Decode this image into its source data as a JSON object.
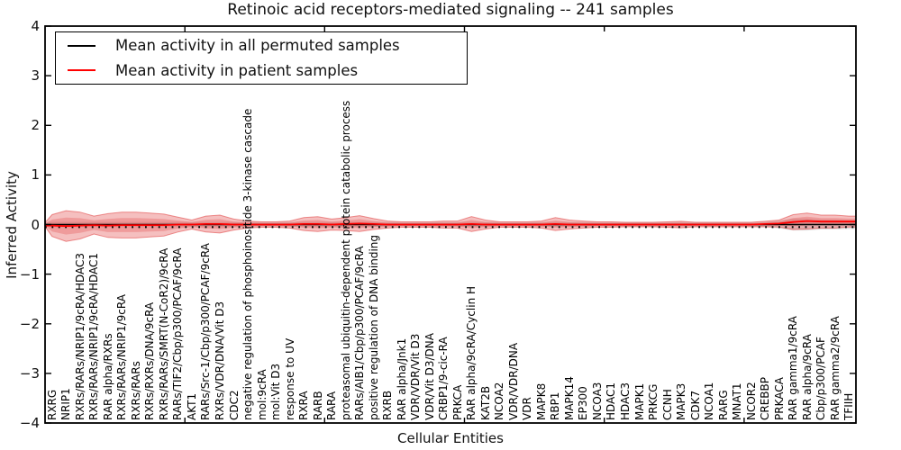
{
  "figure": {
    "title": "Retinoic acid receptors-mediated signaling -- 241 samples",
    "xlabel": "Cellular Entities",
    "ylabel": "Inferred Activity"
  },
  "axes": {
    "yticks": [
      "4",
      "3",
      "2",
      "1",
      "0",
      "−1",
      "−2",
      "−3",
      "−4"
    ]
  },
  "legend": {
    "items": [
      {
        "label": "Mean activity in all permuted samples",
        "color": "#000000"
      },
      {
        "label": "Mean activity in patient samples",
        "color": "#ff0000"
      }
    ]
  },
  "chart_data": {
    "type": "line",
    "title": "Retinoic acid receptors-mediated signaling -- 241 samples",
    "xlabel": "Cellular Entities",
    "ylabel": "Inferred Activity",
    "ylim": [
      -4,
      4
    ],
    "grid": false,
    "legend_position": "upper left",
    "colors": {
      "permuted_line": "#000000",
      "patient_line": "#ff0000",
      "patient_band": "#e03c3c",
      "permuted_band": "#9a9a9a"
    },
    "categories": [
      "RXRG",
      "NRIP1",
      "RXRs/RARs/NRIP1/9cRA/HDAC3",
      "RXRs/RARs/NRIP1/9cRA/HDAC1",
      "RAR alpha/RXRs",
      "RXRs/RARs/NRIP1/9cRA",
      "RXRs/RARs",
      "RXRs/RXRs/DNA/9cRA",
      "RXRs/RARs/SMRT(N-CoR2)/9cRA",
      "RARs/TIF2/Cbp/p300/PCAF/9cRA",
      "AKT1",
      "RARs/Src-1/Cbp/p300/PCAF/9cRA",
      "RXRs/VDR/DNA/Vit D3",
      "CDC2",
      "negative regulation of phosphoinositide 3-kinase cascade",
      "mol:9cRA",
      "mol:Vit D3",
      "response to UV",
      "RXRA",
      "RARB",
      "RARA",
      "proteasomal ubiquitin-dependent protein catabolic process",
      "RARs/AIB1/Cbp/p300/PCAF/9cRA",
      "positive regulation of DNA binding",
      "RXRB",
      "RAR alpha/Jnk1",
      "VDR/VDR/Vit D3",
      "VDR/Vit D3/DNA",
      "CRBP1/9-cic-RA",
      "PRKCA",
      "RAR alpha/9cRA/Cyclin H",
      "KAT2B",
      "NCOA2",
      "VDR/VDR/DNA",
      "VDR",
      "MAPK8",
      "RBP1",
      "MAPK14",
      "EP300",
      "NCOA3",
      "HDAC1",
      "HDAC3",
      "MAPK1",
      "PRKCG",
      "CCNH",
      "MAPK3",
      "CDK7",
      "NCOA1",
      "RARG",
      "MNAT1",
      "NCOR2",
      "CREBBP",
      "PRKACA",
      "RAR gamma1/9cRA",
      "RAR alpha/9cRA",
      "Cbp/p300/PCAF",
      "RAR gamma2/9cRA",
      "TFIIH"
    ],
    "series": [
      {
        "name": "Mean activity in all permuted samples",
        "color": "#000000",
        "values": [
          0,
          0,
          0,
          0,
          0,
          0,
          0,
          0,
          0,
          0,
          0,
          0,
          0,
          0,
          0,
          0,
          0,
          0,
          0,
          0,
          0,
          0,
          0,
          0,
          0,
          0,
          0,
          0,
          0,
          0,
          0,
          0,
          0,
          0,
          0,
          0,
          0,
          0,
          0,
          0,
          0,
          0,
          0,
          0,
          0,
          0,
          0,
          0,
          0,
          0,
          0,
          0,
          0,
          0,
          0,
          0,
          0,
          0
        ]
      },
      {
        "name": "Mean activity in patient samples",
        "color": "#ff0000",
        "values": [
          -0.02,
          -0.03,
          -0.02,
          -0.01,
          -0.02,
          -0.01,
          -0.01,
          -0.01,
          -0.01,
          0,
          0,
          0.01,
          0.01,
          0,
          0,
          0,
          0,
          0,
          0.01,
          0.01,
          0,
          0.01,
          0.02,
          0.01,
          0,
          0,
          0,
          0,
          0,
          0,
          0.01,
          0,
          0,
          0,
          0,
          0,
          0.01,
          0,
          0,
          0,
          0,
          0,
          0,
          0,
          0,
          0,
          0,
          0,
          0,
          0,
          0,
          0.01,
          0.02,
          0.05,
          0.07,
          0.06,
          0.06,
          0.06
        ]
      }
    ],
    "patient_band_halfwidth": [
      0.22,
      0.31,
      0.27,
      0.18,
      0.24,
      0.26,
      0.26,
      0.24,
      0.22,
      0.15,
      0.09,
      0.16,
      0.18,
      0.11,
      0.07,
      0.055,
      0.055,
      0.07,
      0.13,
      0.15,
      0.11,
      0.13,
      0.16,
      0.11,
      0.07,
      0.055,
      0.055,
      0.055,
      0.07,
      0.07,
      0.15,
      0.09,
      0.055,
      0.055,
      0.055,
      0.07,
      0.13,
      0.09,
      0.07,
      0.055,
      0.055,
      0.045,
      0.045,
      0.045,
      0.055,
      0.065,
      0.045,
      0.045,
      0.045,
      0.045,
      0.045,
      0.055,
      0.07,
      0.15,
      0.16,
      0.13,
      0.13,
      0.11
    ],
    "permuted_band_halfwidth": [
      0.055,
      0.055,
      0.055,
      0.055,
      0.055,
      0.055,
      0.055,
      0.055,
      0.055,
      0.055,
      0.055,
      0.055,
      0.055,
      0.055,
      0.055,
      0.055,
      0.055,
      0.055,
      0.055,
      0.055,
      0.055,
      0.055,
      0.055,
      0.055,
      0.055,
      0.055,
      0.055,
      0.055,
      0.055,
      0.055,
      0.055,
      0.055,
      0.055,
      0.055,
      0.055,
      0.055,
      0.055,
      0.055,
      0.055,
      0.055,
      0.055,
      0.055,
      0.055,
      0.055,
      0.055,
      0.055,
      0.055,
      0.055,
      0.055,
      0.055,
      0.055,
      0.055,
      0.08,
      0.12,
      0.12,
      0.1,
      0.1,
      0.09
    ],
    "permuted_marker_line_y": -0.05
  }
}
